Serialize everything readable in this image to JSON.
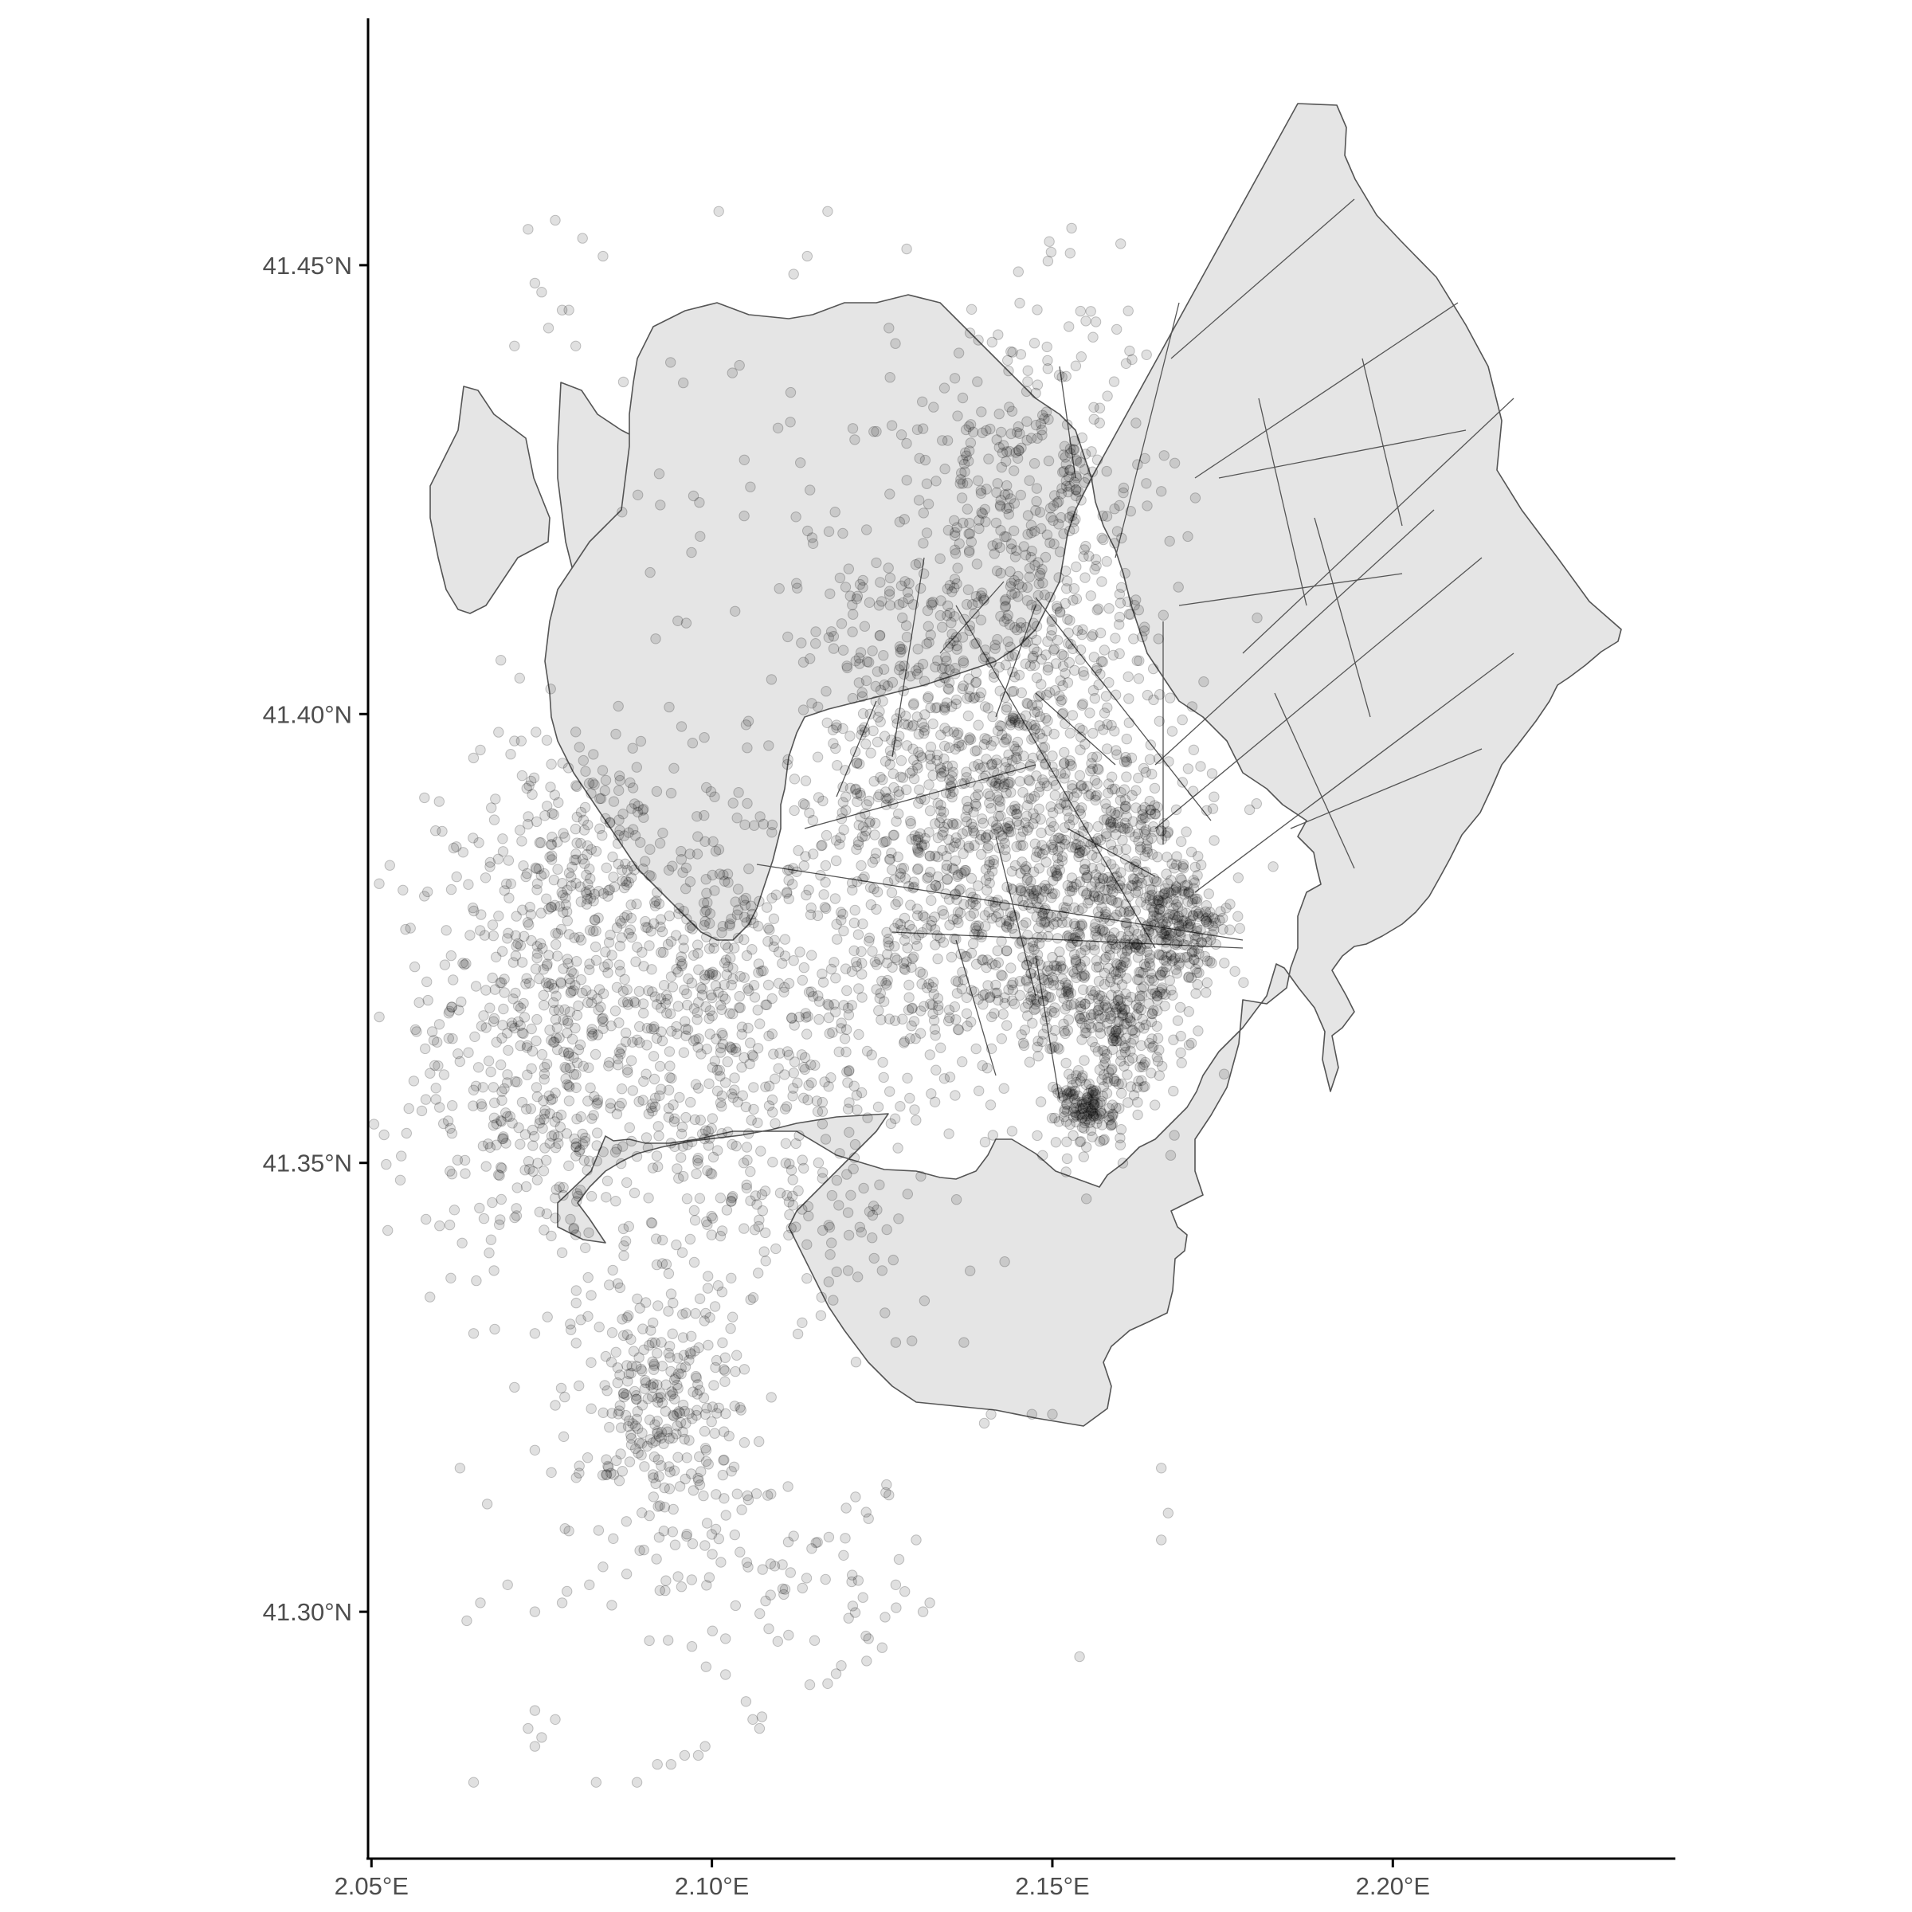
{
  "chart_data": {
    "type": "scatter",
    "subtype": "map-points-over-polygons",
    "x_axis": {
      "ticks": [
        2.05,
        2.1,
        2.15,
        2.2
      ],
      "tick_labels": [
        "2.05°E",
        "2.10°E",
        "2.15°E",
        "2.20°E"
      ],
      "range": [
        2.0495,
        2.2415
      ]
    },
    "y_axis": {
      "ticks": [
        41.3,
        41.35,
        41.4,
        41.45
      ],
      "tick_labels": [
        "41.30°N",
        "41.35°N",
        "41.40°N",
        "41.45°N"
      ],
      "range": [
        41.2725,
        41.4775
      ]
    },
    "grid": false,
    "legend": "none",
    "colors": {
      "polygon_fill": "#e5e5e5",
      "polygon_stroke": "#555555",
      "points": "#000000",
      "axis": "#000000",
      "tick_text": "#4d4d4d"
    },
    "point_alpha": 0.12,
    "clusters": [
      {
        "lon": 2.144,
        "lat": 41.392,
        "sd_lon": 0.012,
        "sd_lat": 0.014,
        "n": 900
      },
      {
        "lon": 2.16,
        "lat": 41.38,
        "sd_lon": 0.007,
        "sd_lat": 0.007,
        "n": 420
      },
      {
        "lon": 2.148,
        "lat": 41.425,
        "sd_lon": 0.008,
        "sd_lat": 0.011,
        "n": 300
      },
      {
        "lon": 2.133,
        "lat": 41.372,
        "sd_lon": 0.012,
        "sd_lat": 0.008,
        "n": 280
      },
      {
        "lon": 2.128,
        "lat": 41.392,
        "sd_lon": 0.012,
        "sd_lat": 0.012,
        "n": 230
      },
      {
        "lon": 2.075,
        "lat": 41.362,
        "sd_lon": 0.011,
        "sd_lat": 0.012,
        "n": 460
      },
      {
        "lon": 2.103,
        "lat": 41.362,
        "sd_lon": 0.011,
        "sd_lat": 0.01,
        "n": 330
      },
      {
        "lon": 2.09,
        "lat": 41.377,
        "sd_lon": 0.01,
        "sd_lat": 0.008,
        "n": 220
      },
      {
        "lon": 2.078,
        "lat": 41.386,
        "sd_lon": 0.007,
        "sd_lat": 0.006,
        "n": 120
      },
      {
        "lon": 2.093,
        "lat": 41.322,
        "sd_lon": 0.006,
        "sd_lat": 0.008,
        "n": 320
      },
      {
        "lon": 2.155,
        "lat": 41.356,
        "sd_lon": 0.002,
        "sd_lat": 0.002,
        "n": 130
      },
      {
        "lon": 2.16,
        "lat": 41.363,
        "sd_lon": 0.003,
        "sd_lat": 0.004,
        "n": 110
      },
      {
        "lon": 2.152,
        "lat": 41.368,
        "sd_lon": 0.004,
        "sd_lat": 0.003,
        "n": 90
      },
      {
        "lon": 2.165,
        "lat": 41.368,
        "sd_lon": 0.004,
        "sd_lat": 0.006,
        "n": 90
      },
      {
        "lon": 2.17,
        "lat": 41.376,
        "sd_lon": 0.003,
        "sd_lat": 0.003,
        "n": 140
      },
      {
        "lon": 2.13,
        "lat": 41.415,
        "sd_lon": 0.01,
        "sd_lat": 0.012,
        "n": 120
      },
      {
        "lon": 2.115,
        "lat": 41.345,
        "sd_lon": 0.009,
        "sd_lat": 0.005,
        "n": 80
      },
      {
        "lon": 2.116,
        "lat": 41.305,
        "sd_lon": 0.01,
        "sd_lat": 0.006,
        "n": 60
      },
      {
        "lon": 2.085,
        "lat": 41.35,
        "sd_lon": 0.012,
        "sd_lat": 0.004,
        "n": 50
      },
      {
        "lon": 2.11,
        "lat": 41.42,
        "sd_lon": 0.015,
        "sd_lat": 0.01,
        "n": 40
      }
    ],
    "extra_points": [
      [
        2.074,
        41.448
      ],
      [
        2.075,
        41.447
      ],
      [
        2.078,
        41.445
      ],
      [
        2.079,
        41.445
      ],
      [
        2.076,
        41.443
      ],
      [
        2.077,
        41.455
      ],
      [
        2.073,
        41.454
      ],
      [
        2.081,
        41.453
      ],
      [
        2.084,
        41.451
      ],
      [
        2.101,
        41.456
      ],
      [
        2.117,
        41.456
      ],
      [
        2.114,
        41.451
      ],
      [
        2.112,
        41.449
      ],
      [
        2.08,
        41.441
      ],
      [
        2.071,
        41.441
      ],
      [
        2.087,
        41.437
      ],
      [
        2.126,
        41.443
      ],
      [
        2.103,
        41.438
      ],
      [
        2.069,
        41.406
      ],
      [
        2.113,
        41.428
      ],
      [
        2.097,
        41.418
      ],
      [
        2.071,
        41.397
      ],
      [
        2.072,
        41.397
      ],
      [
        2.08,
        41.398
      ],
      [
        2.066,
        41.396
      ],
      [
        2.08,
        41.342
      ],
      [
        2.078,
        41.34
      ],
      [
        2.068,
        41.338
      ],
      [
        2.074,
        41.331
      ],
      [
        2.065,
        41.331
      ],
      [
        2.071,
        41.325
      ],
      [
        2.077,
        41.323
      ],
      [
        2.074,
        41.318
      ],
      [
        2.067,
        41.312
      ],
      [
        2.063,
        41.316
      ],
      [
        2.079,
        41.309
      ],
      [
        2.078,
        41.301
      ],
      [
        2.074,
        41.3
      ],
      [
        2.07,
        41.303
      ],
      [
        2.066,
        41.301
      ],
      [
        2.064,
        41.299
      ],
      [
        2.082,
        41.303
      ],
      [
        2.084,
        41.305
      ],
      [
        2.074,
        41.289
      ],
      [
        2.073,
        41.287
      ],
      [
        2.075,
        41.286
      ],
      [
        2.077,
        41.288
      ],
      [
        2.074,
        41.285
      ],
      [
        2.065,
        41.281
      ],
      [
        2.083,
        41.281
      ],
      [
        2.089,
        41.281
      ],
      [
        2.092,
        41.283
      ],
      [
        2.094,
        41.283
      ],
      [
        2.096,
        41.284
      ],
      [
        2.098,
        41.284
      ],
      [
        2.099,
        41.285
      ],
      [
        2.105,
        41.29
      ],
      [
        2.106,
        41.288
      ],
      [
        2.107,
        41.287
      ],
      [
        2.102,
        41.293
      ],
      [
        2.102,
        41.297
      ],
      [
        2.117,
        41.292
      ],
      [
        2.119,
        41.294
      ],
      [
        2.123,
        41.297
      ],
      [
        2.125,
        41.296
      ],
      [
        2.127,
        41.303
      ],
      [
        2.131,
        41.3
      ],
      [
        2.132,
        41.301
      ],
      [
        2.13,
        41.308
      ],
      [
        2.126,
        41.313
      ],
      [
        2.166,
        41.316
      ],
      [
        2.167,
        41.311
      ],
      [
        2.166,
        41.308
      ],
      [
        2.154,
        41.295
      ],
      [
        2.147,
        41.322
      ],
      [
        2.14,
        41.321
      ],
      [
        2.141,
        41.322
      ],
      [
        2.137,
        41.33
      ],
      [
        2.127,
        41.33
      ],
      [
        2.125,
        41.338
      ],
      [
        2.15,
        41.322
      ],
      [
        2.143,
        41.339
      ],
      [
        2.116,
        41.333
      ],
      [
        2.12,
        41.338
      ],
      [
        2.152,
        41.349
      ],
      [
        2.155,
        41.346
      ],
      [
        2.16,
        41.352
      ],
      [
        2.12,
        41.356
      ]
    ]
  }
}
